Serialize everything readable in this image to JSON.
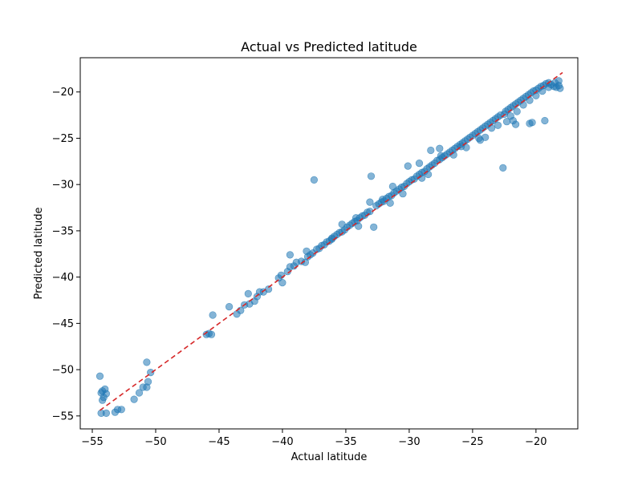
{
  "chart_data": {
    "type": "scatter",
    "title": "Actual vs Predicted latitude",
    "xlabel": "Actual latitude",
    "ylabel": "Predicted latitude",
    "xlim": [
      -55.95,
      -16.7
    ],
    "ylim": [
      -56.4,
      -16.3
    ],
    "xticks": [
      -55,
      -50,
      -45,
      -40,
      -35,
      -30,
      -25,
      -20
    ],
    "yticks": [
      -55,
      -50,
      -45,
      -40,
      -35,
      -30,
      -25,
      -20
    ],
    "xtick_labels": [
      "−55",
      "−50",
      "−45",
      "−40",
      "−35",
      "−30",
      "−25",
      "−20"
    ],
    "ytick_labels": [
      "−55",
      "−50",
      "−45",
      "−40",
      "−35",
      "−30",
      "−25",
      "−20"
    ],
    "grid": false,
    "point_color": "#1f77b4",
    "point_alpha": 0.55,
    "reference_line": {
      "from": [
        -54.4,
        -54.4
      ],
      "to": [
        -17.9,
        -17.9
      ],
      "color": "#d62728",
      "style": "dashed"
    },
    "series": [
      {
        "points": [
          [
            -54.4,
            -50.7
          ],
          [
            -54.3,
            -52.5
          ],
          [
            -54.2,
            -52.3
          ],
          [
            -54.1,
            -53.0
          ],
          [
            -54.2,
            -53.3
          ],
          [
            -54.0,
            -52.1
          ],
          [
            -53.9,
            -52.6
          ],
          [
            -54.3,
            -54.7
          ],
          [
            -53.9,
            -54.7
          ],
          [
            -53.2,
            -54.6
          ],
          [
            -53.0,
            -54.3
          ],
          [
            -52.7,
            -54.3
          ],
          [
            -51.7,
            -53.2
          ],
          [
            -51.3,
            -52.5
          ],
          [
            -51.0,
            -51.9
          ],
          [
            -50.7,
            -51.9
          ],
          [
            -50.6,
            -51.3
          ],
          [
            -50.7,
            -49.2
          ],
          [
            -50.4,
            -50.3
          ],
          [
            -46.0,
            -46.2
          ],
          [
            -45.8,
            -46.1
          ],
          [
            -45.6,
            -46.2
          ],
          [
            -45.5,
            -44.1
          ],
          [
            -44.2,
            -43.2
          ],
          [
            -43.6,
            -44.0
          ],
          [
            -43.3,
            -43.6
          ],
          [
            -43.0,
            -43.0
          ],
          [
            -42.7,
            -41.8
          ],
          [
            -42.6,
            -42.9
          ],
          [
            -42.2,
            -42.6
          ],
          [
            -42.0,
            -42.1
          ],
          [
            -41.8,
            -41.6
          ],
          [
            -41.5,
            -41.6
          ],
          [
            -41.1,
            -41.3
          ],
          [
            -40.3,
            -40.1
          ],
          [
            -40.1,
            -39.8
          ],
          [
            -40.0,
            -40.6
          ],
          [
            -39.6,
            -39.4
          ],
          [
            -39.4,
            -38.9
          ],
          [
            -39.1,
            -38.8
          ],
          [
            -38.9,
            -38.4
          ],
          [
            -38.5,
            -38.3
          ],
          [
            -38.2,
            -38.4
          ],
          [
            -38.0,
            -37.8
          ],
          [
            -37.8,
            -37.6
          ],
          [
            -37.6,
            -37.4
          ],
          [
            -37.5,
            -29.5
          ],
          [
            -37.3,
            -37.0
          ],
          [
            -37.1,
            -36.9
          ],
          [
            -36.9,
            -36.6
          ],
          [
            -36.7,
            -36.5
          ],
          [
            -36.5,
            -36.2
          ],
          [
            -36.3,
            -36.1
          ],
          [
            -36.1,
            -35.9
          ],
          [
            -35.9,
            -35.6
          ],
          [
            -35.7,
            -35.4
          ],
          [
            -35.5,
            -35.2
          ],
          [
            -35.3,
            -35.1
          ],
          [
            -35.1,
            -34.9
          ],
          [
            -34.9,
            -34.6
          ],
          [
            -34.7,
            -34.4
          ],
          [
            -34.5,
            -34.2
          ],
          [
            -34.3,
            -34.0
          ],
          [
            -34.1,
            -33.9
          ],
          [
            -33.9,
            -33.6
          ],
          [
            -33.7,
            -33.4
          ],
          [
            -33.5,
            -33.3
          ],
          [
            -33.3,
            -33.0
          ],
          [
            -33.1,
            -32.9
          ],
          [
            -33.0,
            -29.1
          ],
          [
            -32.8,
            -34.6
          ],
          [
            -32.6,
            -32.3
          ],
          [
            -32.4,
            -32.1
          ],
          [
            -32.2,
            -31.9
          ],
          [
            -32.0,
            -31.8
          ],
          [
            -31.8,
            -31.5
          ],
          [
            -31.6,
            -31.3
          ],
          [
            -31.4,
            -31.2
          ],
          [
            -31.2,
            -30.9
          ],
          [
            -31.0,
            -30.7
          ],
          [
            -30.8,
            -30.5
          ],
          [
            -30.6,
            -30.3
          ],
          [
            -30.4,
            -30.2
          ],
          [
            -30.2,
            -29.9
          ],
          [
            -30.0,
            -29.7
          ],
          [
            -29.8,
            -29.5
          ],
          [
            -29.6,
            -29.4
          ],
          [
            -29.4,
            -29.1
          ],
          [
            -29.2,
            -28.9
          ],
          [
            -29.0,
            -28.7
          ],
          [
            -28.8,
            -28.6
          ],
          [
            -28.6,
            -28.3
          ],
          [
            -28.4,
            -28.1
          ],
          [
            -28.2,
            -27.9
          ],
          [
            -28.0,
            -27.7
          ],
          [
            -27.8,
            -27.4
          ],
          [
            -27.6,
            -27.3
          ],
          [
            -27.4,
            -27.1
          ],
          [
            -27.2,
            -26.9
          ],
          [
            -27.0,
            -26.7
          ],
          [
            -26.8,
            -26.5
          ],
          [
            -26.6,
            -26.3
          ],
          [
            -26.4,
            -26.1
          ],
          [
            -26.2,
            -25.9
          ],
          [
            -26.0,
            -25.7
          ],
          [
            -25.8,
            -25.5
          ],
          [
            -25.6,
            -25.3
          ],
          [
            -25.4,
            -25.1
          ],
          [
            -25.2,
            -24.9
          ],
          [
            -25.0,
            -24.7
          ],
          [
            -24.8,
            -24.5
          ],
          [
            -24.6,
            -24.3
          ],
          [
            -24.4,
            -24.1
          ],
          [
            -24.2,
            -23.9
          ],
          [
            -24.0,
            -23.7
          ],
          [
            -23.8,
            -23.5
          ],
          [
            -23.6,
            -23.3
          ],
          [
            -23.4,
            -23.1
          ],
          [
            -23.2,
            -22.9
          ],
          [
            -23.0,
            -22.7
          ],
          [
            -22.8,
            -22.5
          ],
          [
            -22.6,
            -28.2
          ],
          [
            -22.4,
            -22.1
          ],
          [
            -22.2,
            -21.9
          ],
          [
            -22.0,
            -21.7
          ],
          [
            -21.8,
            -21.5
          ],
          [
            -21.6,
            -21.3
          ],
          [
            -21.4,
            -21.1
          ],
          [
            -21.2,
            -20.9
          ],
          [
            -21.0,
            -20.7
          ],
          [
            -20.8,
            -20.5
          ],
          [
            -20.6,
            -20.3
          ],
          [
            -20.4,
            -20.1
          ],
          [
            -20.2,
            -19.9
          ],
          [
            -20.0,
            -19.8
          ],
          [
            -19.8,
            -19.6
          ],
          [
            -19.6,
            -19.4
          ],
          [
            -19.4,
            -19.3
          ],
          [
            -19.2,
            -19.1
          ],
          [
            -19.0,
            -19.0
          ],
          [
            -18.8,
            -19.2
          ],
          [
            -18.6,
            -19.4
          ],
          [
            -18.4,
            -19.5
          ],
          [
            -18.2,
            -19.3
          ],
          [
            -18.1,
            -19.6
          ],
          [
            -35.3,
            -34.3
          ],
          [
            -34.0,
            -34.5
          ],
          [
            -31.5,
            -32.0
          ],
          [
            -30.5,
            -31.0
          ],
          [
            -29.0,
            -29.3
          ],
          [
            -28.5,
            -28.9
          ],
          [
            -27.5,
            -26.9
          ],
          [
            -26.5,
            -26.8
          ],
          [
            -25.5,
            -26.0
          ],
          [
            -24.5,
            -25.0
          ],
          [
            -24.0,
            -24.9
          ],
          [
            -23.5,
            -23.9
          ],
          [
            -23.0,
            -23.6
          ],
          [
            -22.5,
            -22.4
          ],
          [
            -22.0,
            -22.6
          ],
          [
            -21.5,
            -22.1
          ],
          [
            -21.0,
            -21.4
          ],
          [
            -20.5,
            -20.9
          ],
          [
            -20.0,
            -20.4
          ],
          [
            -19.5,
            -19.9
          ],
          [
            -19.0,
            -19.5
          ],
          [
            -18.5,
            -19.0
          ],
          [
            -18.2,
            -18.8
          ],
          [
            -22.3,
            -23.2
          ],
          [
            -21.8,
            -23.1
          ],
          [
            -21.6,
            -23.5
          ],
          [
            -20.5,
            -23.4
          ],
          [
            -20.3,
            -23.3
          ],
          [
            -19.3,
            -23.1
          ],
          [
            -24.4,
            -25.2
          ],
          [
            -25.9,
            -25.9
          ],
          [
            -27.6,
            -26.1
          ],
          [
            -28.3,
            -26.3
          ],
          [
            -29.2,
            -27.7
          ],
          [
            -30.1,
            -28.0
          ],
          [
            -31.3,
            -30.2
          ],
          [
            -32.1,
            -31.6
          ],
          [
            -33.1,
            -31.9
          ],
          [
            -34.2,
            -33.6
          ],
          [
            -36.1,
            -35.8
          ],
          [
            -38.1,
            -37.2
          ],
          [
            -39.4,
            -37.6
          ]
        ]
      }
    ]
  }
}
